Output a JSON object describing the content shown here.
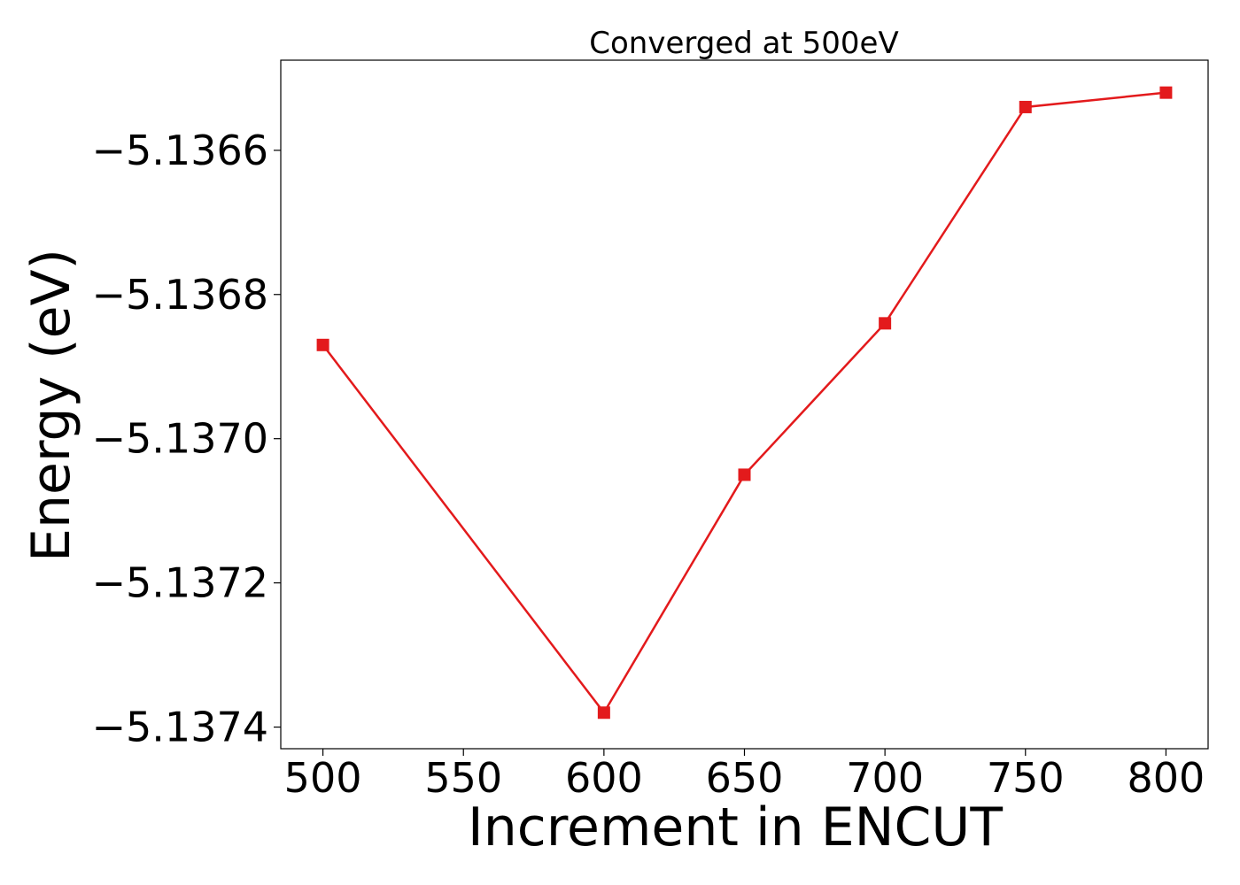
{
  "chart_data": {
    "type": "line",
    "title": "Converged at 500eV",
    "xlabel": "Increment in ENCUT",
    "ylabel": "Energy (eV)",
    "x": [
      500,
      600,
      650,
      700,
      750,
      800
    ],
    "series": [
      {
        "values": [
          -5.13687,
          -5.13738,
          -5.13705,
          -5.13684,
          -5.13654,
          -5.13652
        ],
        "color": "#e31a1c",
        "marker": "square"
      }
    ],
    "xticks": [
      500,
      550,
      600,
      650,
      700,
      750,
      800
    ],
    "xtick_labels": [
      "500",
      "550",
      "600",
      "650",
      "700",
      "750",
      "800"
    ],
    "yticks": [
      -5.1366,
      -5.1368,
      -5.137,
      -5.1372,
      -5.1374
    ],
    "ytick_labels": [
      "−5.1366",
      "−5.1368",
      "−5.1370",
      "−5.1372",
      "−5.1374"
    ],
    "xlim": [
      485,
      815
    ],
    "ylim": [
      -5.13743,
      -5.136475
    ],
    "grid": false,
    "legend": "none"
  }
}
